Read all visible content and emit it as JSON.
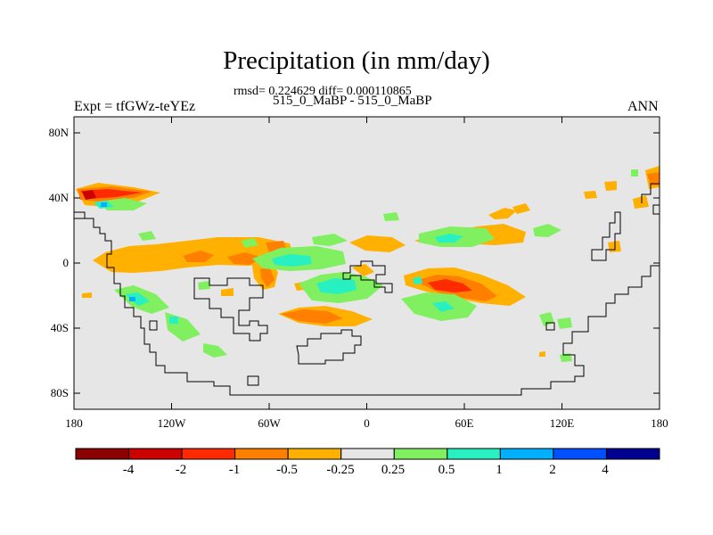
{
  "title": "Precipitation (in mm/day)",
  "stats": "rmsd= 0.224629 diff= 0.000110865",
  "subtitle": "515_0_MaBP - 515_0_MaBP",
  "experiment": "Expt = tfGWz-teYEz",
  "season": "ANN",
  "lat_labels": [
    "80N",
    "40N",
    "0",
    "40S",
    "80S"
  ],
  "lon_labels": [
    "180",
    "120W",
    "60W",
    "0",
    "60E",
    "120E",
    "180"
  ],
  "colorbar": {
    "labels": [
      "-4",
      "-2",
      "-1",
      "-0.5",
      "-0.25",
      "0.25",
      "0.5",
      "1",
      "2",
      "4"
    ],
    "colors": [
      "#8b0000",
      "#cd0000",
      "#ff2a00",
      "#ff7f00",
      "#ffb000",
      "#e6e6e6",
      "#80f060",
      "#28f0c0",
      "#00b0ff",
      "#0050ff",
      "#000090"
    ]
  }
}
